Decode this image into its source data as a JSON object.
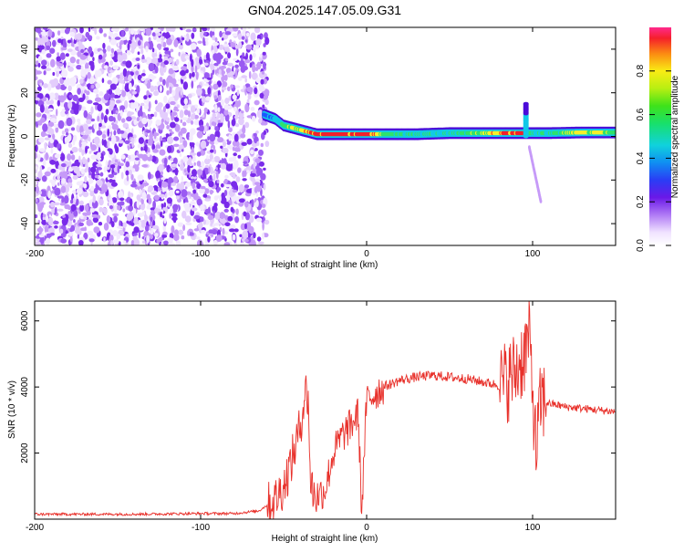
{
  "title": "GN04.2025.147.05.09.G31",
  "colors": {
    "snr_line": "#e8302a",
    "spectrogram_noise": [
      "#f3eafe",
      "#e3cdfc",
      "#c69af8",
      "#9a5af2",
      "#7a2bea"
    ],
    "ridge": [
      "#4b0bd9",
      "#1f56ff",
      "#12c8e8",
      "#2ee26c",
      "#f6f02a",
      "#f2202a"
    ]
  },
  "chart_data": [
    {
      "type": "heatmap",
      "name": "spectrogram",
      "title": "GN04.2025.147.05.09.G31",
      "xlabel": "Height of straight line (km)",
      "ylabel": "Frequency (Hz)",
      "xlim": [
        -200,
        150
      ],
      "ylim": [
        -50,
        50
      ],
      "x_ticks": [
        "-200",
        "-100",
        "0",
        "100"
      ],
      "y_ticks": [
        "-40",
        "-20",
        "0",
        "20",
        "40"
      ],
      "noise_region_x": [
        -200,
        -60
      ],
      "ridge": {
        "x": [
          -62,
          -55,
          -50,
          -45,
          -40,
          -35,
          -30,
          -20,
          -10,
          0,
          10,
          30,
          50,
          70,
          85,
          95,
          100,
          110,
          130,
          150
        ],
        "frequency": [
          10,
          8,
          5,
          4,
          3,
          2,
          1,
          1,
          1,
          1,
          1,
          1,
          1.5,
          1.5,
          1.5,
          1.5,
          1.5,
          1.5,
          1.8,
          1.8
        ],
        "normalized_amplitude": [
          0.3,
          0.4,
          0.55,
          0.7,
          0.7,
          0.9,
          0.95,
          0.95,
          0.9,
          0.95,
          0.6,
          0.5,
          0.5,
          0.65,
          0.95,
          0.9,
          0.5,
          0.5,
          0.75,
          0.6
        ]
      },
      "spike": {
        "x": 96,
        "frequency": [
          0,
          15
        ]
      },
      "branch": {
        "x": [
          98,
          105
        ],
        "frequency": [
          -5,
          -30
        ]
      },
      "colorbar": {
        "label": "Normalized spectral amplitude",
        "range": [
          0,
          1
        ],
        "ticks": [
          "0.0",
          "0.2",
          "0.4",
          "0.6",
          "0.8"
        ]
      },
      "grid": false
    },
    {
      "type": "line",
      "name": "snr",
      "xlabel": "Height of straight line (km)",
      "ylabel": "SNR (10 * v/v)",
      "xlim": [
        -200,
        150
      ],
      "ylim": [
        0,
        6600
      ],
      "x_ticks": [
        "-200",
        "-100",
        "0",
        "100"
      ],
      "y_ticks": [
        "2000",
        "4000",
        "6000"
      ],
      "grid": false,
      "series": [
        {
          "x": [
            -200,
            -180,
            -160,
            -140,
            -120,
            -100,
            -80,
            -65,
            -55,
            -50,
            -45,
            -40,
            -37,
            -35,
            -34,
            -32,
            -30,
            -25,
            -20,
            -15,
            -10,
            -5,
            -3,
            0,
            5,
            10,
            15,
            20,
            30,
            40,
            50,
            60,
            70,
            80,
            85,
            90,
            95,
            98,
            100,
            102,
            105,
            110,
            120,
            130,
            140,
            150
          ],
          "y": [
            150,
            150,
            150,
            150,
            160,
            170,
            170,
            250,
            600,
            1000,
            1800,
            2800,
            3900,
            3600,
            1200,
            800,
            700,
            900,
            2000,
            2500,
            2800,
            3200,
            200,
            3600,
            3800,
            4000,
            4100,
            4200,
            4300,
            4350,
            4300,
            4250,
            4150,
            4050,
            4200,
            4500,
            5000,
            5500,
            4000,
            2000,
            3600,
            3500,
            3400,
            3350,
            3300,
            3250
          ]
        }
      ]
    }
  ]
}
